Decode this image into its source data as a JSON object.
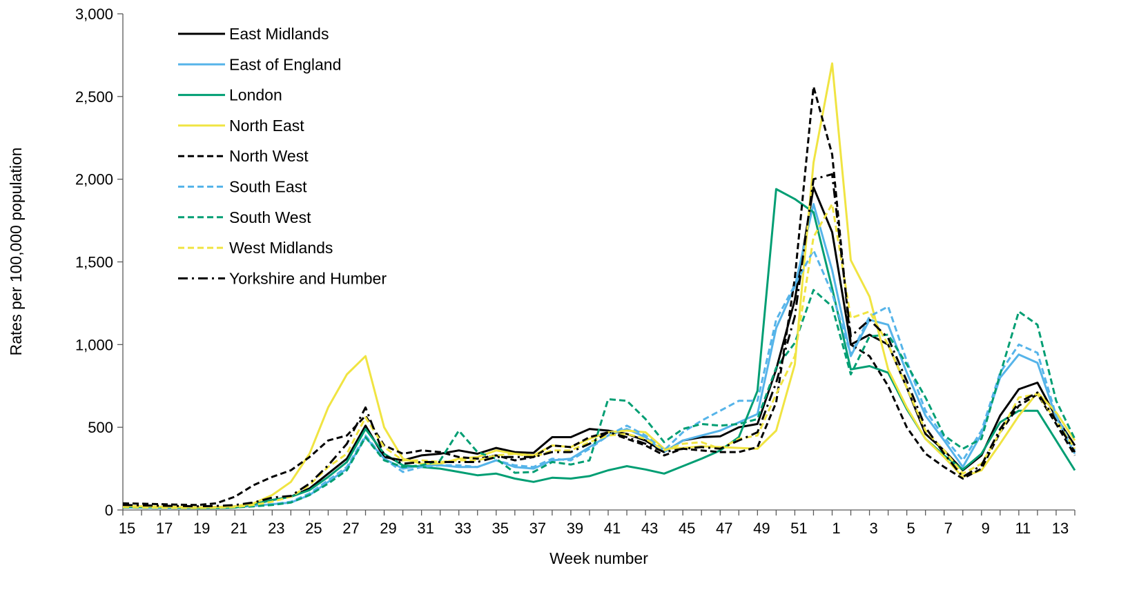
{
  "chart_data": {
    "type": "line",
    "title": "",
    "xlabel": "Week number",
    "ylabel": "Rates per 100,000 population",
    "ylim": [
      0,
      3000
    ],
    "yticks": [
      0,
      500,
      1000,
      1500,
      2000,
      2500,
      3000
    ],
    "ytick_labels": [
      "0",
      "500",
      "1,000",
      "1,500",
      "2,000",
      "2,500",
      "3,000"
    ],
    "legend_position": "top-left",
    "grid": false,
    "categories": [
      "15",
      "16",
      "17",
      "18",
      "19",
      "20",
      "21",
      "22",
      "23",
      "24",
      "25",
      "26",
      "27",
      "28",
      "29",
      "30",
      "31",
      "32",
      "33",
      "34",
      "35",
      "36",
      "37",
      "38",
      "39",
      "40",
      "41",
      "42",
      "43",
      "44",
      "45",
      "46",
      "47",
      "48",
      "49",
      "50",
      "51",
      "52",
      "1",
      "2",
      "3",
      "4",
      "5",
      "6",
      "7",
      "8",
      "9",
      "10",
      "11",
      "12",
      "13",
      "14"
    ],
    "xtick_labels": [
      "15",
      "17",
      "19",
      "21",
      "23",
      "25",
      "27",
      "29",
      "31",
      "33",
      "35",
      "37",
      "39",
      "41",
      "43",
      "45",
      "47",
      "49",
      "51",
      "1",
      "3",
      "5",
      "7",
      "9",
      "11",
      "13"
    ],
    "series": [
      {
        "name": "East Midlands",
        "color": "#000000",
        "dash": "solid",
        "values": [
          22,
          20,
          18,
          16,
          15,
          18,
          22,
          35,
          60,
          80,
          130,
          220,
          310,
          510,
          320,
          300,
          330,
          340,
          360,
          340,
          375,
          350,
          345,
          440,
          440,
          490,
          480,
          460,
          420,
          350,
          420,
          440,
          445,
          500,
          520,
          850,
          1270,
          1950,
          1680,
          1000,
          1060,
          1000,
          740,
          460,
          360,
          240,
          330,
          570,
          730,
          770,
          560,
          390
        ]
      },
      {
        "name": "East of England",
        "color": "#56B4E9",
        "dash": "solid",
        "values": [
          15,
          14,
          13,
          12,
          11,
          13,
          16,
          25,
          35,
          45,
          90,
          170,
          250,
          440,
          310,
          250,
          270,
          270,
          260,
          260,
          300,
          260,
          250,
          300,
          310,
          380,
          450,
          490,
          440,
          350,
          420,
          450,
          480,
          530,
          580,
          1100,
          1350,
          1850,
          1450,
          930,
          1150,
          1120,
          830,
          570,
          420,
          260,
          460,
          800,
          940,
          890,
          560,
          340
        ]
      },
      {
        "name": "London",
        "color": "#009E73",
        "dash": "solid",
        "values": [
          20,
          18,
          16,
          14,
          12,
          12,
          14,
          35,
          60,
          80,
          120,
          200,
          290,
          490,
          340,
          270,
          260,
          250,
          230,
          210,
          220,
          190,
          170,
          195,
          190,
          205,
          240,
          265,
          245,
          220,
          265,
          310,
          360,
          440,
          720,
          1940,
          1880,
          1800,
          1340,
          850,
          870,
          830,
          610,
          430,
          330,
          245,
          340,
          530,
          600,
          600,
          420,
          240
        ]
      },
      {
        "name": "North East",
        "color": "#F0E442",
        "dash": "solid",
        "values": [
          25,
          22,
          20,
          18,
          16,
          18,
          22,
          40,
          90,
          170,
          340,
          620,
          820,
          930,
          500,
          310,
          280,
          280,
          310,
          320,
          360,
          340,
          330,
          390,
          380,
          430,
          470,
          480,
          470,
          370,
          375,
          385,
          380,
          375,
          370,
          480,
          880,
          2100,
          2700,
          1510,
          1290,
          850,
          620,
          430,
          320,
          200,
          240,
          400,
          570,
          710,
          590,
          420
        ]
      },
      {
        "name": "North West",
        "color": "#000000",
        "dash": "dashed",
        "values": [
          40,
          38,
          35,
          32,
          30,
          40,
          80,
          150,
          200,
          240,
          320,
          420,
          450,
          570,
          390,
          340,
          360,
          350,
          320,
          310,
          330,
          300,
          320,
          390,
          380,
          440,
          470,
          430,
          390,
          330,
          370,
          360,
          350,
          350,
          380,
          650,
          1400,
          2560,
          2150,
          1000,
          930,
          750,
          500,
          340,
          260,
          190,
          250,
          470,
          630,
          700,
          520,
          330
        ]
      },
      {
        "name": "South East",
        "color": "#56B4E9",
        "dash": "dashed",
        "values": [
          15,
          14,
          13,
          12,
          11,
          13,
          16,
          25,
          35,
          50,
          100,
          180,
          260,
          450,
          310,
          230,
          260,
          270,
          270,
          260,
          300,
          270,
          260,
          310,
          300,
          370,
          450,
          510,
          450,
          360,
          470,
          540,
          600,
          660,
          660,
          1150,
          1360,
          1570,
          1310,
          940,
          1170,
          1230,
          900,
          600,
          440,
          300,
          480,
          830,
          1000,
          950,
          570,
          360
        ]
      },
      {
        "name": "South West",
        "color": "#009E73",
        "dash": "dashed",
        "values": [
          15,
          14,
          13,
          12,
          11,
          12,
          15,
          22,
          30,
          45,
          90,
          160,
          240,
          440,
          300,
          260,
          270,
          300,
          480,
          350,
          310,
          225,
          230,
          290,
          275,
          300,
          670,
          660,
          550,
          410,
          490,
          520,
          510,
          520,
          550,
          860,
          1010,
          1330,
          1230,
          820,
          1050,
          1060,
          880,
          680,
          450,
          370,
          430,
          820,
          1200,
          1120,
          660,
          430
        ]
      },
      {
        "name": "West Midlands",
        "color": "#F0E442",
        "dash": "dashed",
        "values": [
          18,
          16,
          14,
          13,
          12,
          14,
          18,
          30,
          50,
          80,
          150,
          260,
          340,
          560,
          380,
          300,
          300,
          290,
          300,
          300,
          330,
          340,
          320,
          360,
          360,
          410,
          450,
          460,
          430,
          360,
          400,
          410,
          370,
          430,
          450,
          700,
          930,
          1650,
          1850,
          1160,
          1200,
          1000,
          740,
          480,
          360,
          220,
          280,
          470,
          680,
          700,
          540,
          370
        ]
      },
      {
        "name": "Yorkshire and Humber",
        "color": "#000000",
        "dash": "dashdot",
        "values": [
          30,
          28,
          26,
          24,
          22,
          24,
          30,
          45,
          75,
          85,
          160,
          270,
          400,
          620,
          330,
          280,
          290,
          290,
          290,
          290,
          320,
          320,
          320,
          350,
          350,
          400,
          470,
          440,
          400,
          350,
          370,
          380,
          370,
          420,
          470,
          770,
          1170,
          2000,
          2030,
          1050,
          1150,
          1040,
          780,
          500,
          340,
          200,
          270,
          490,
          650,
          710,
          540,
          350
        ]
      }
    ]
  }
}
